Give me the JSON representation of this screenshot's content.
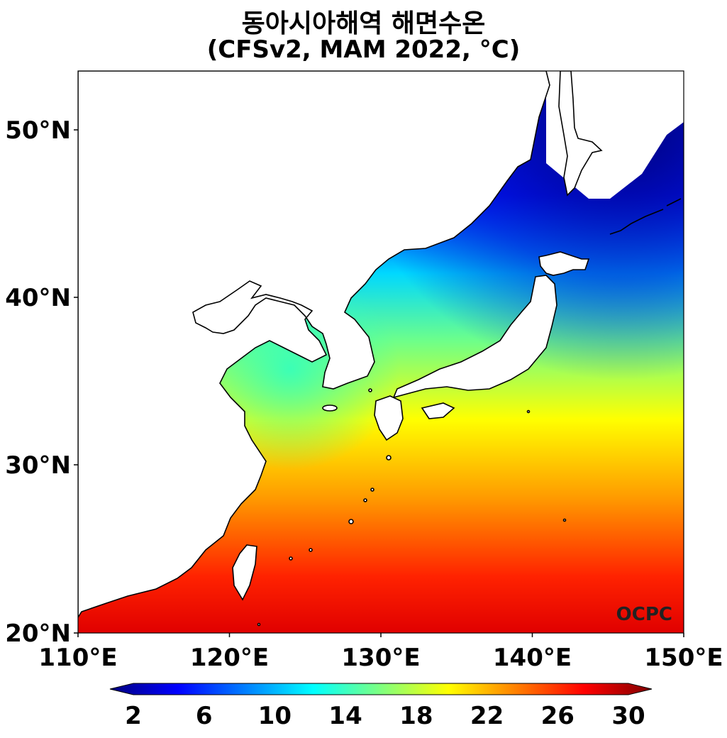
{
  "title": "동아시아해역 해면수온",
  "subtitle": "(CFSv2, MAM 2022, °C)",
  "map": {
    "lon_range": [
      110,
      150
    ],
    "lat_range": [
      20,
      53.5
    ],
    "lon_ticks": [
      "110°E",
      "120°E",
      "130°E",
      "140°E",
      "150°E"
    ],
    "lat_ticks": [
      "20°N",
      "30°N",
      "40°N",
      "50°N"
    ],
    "land_color": "#ffffff",
    "coastline_color": "#000000"
  },
  "colorbar": {
    "ticks": [
      "2",
      "6",
      "10",
      "14",
      "18",
      "22",
      "26",
      "30"
    ],
    "range": [
      2,
      30
    ],
    "colormap": [
      "#00007f",
      "#0000ff",
      "#007fff",
      "#00ffff",
      "#7fff7f",
      "#ffff00",
      "#ff7f00",
      "#ff0000",
      "#7f0000"
    ],
    "extend": "both"
  },
  "watermark": "OCPC"
}
